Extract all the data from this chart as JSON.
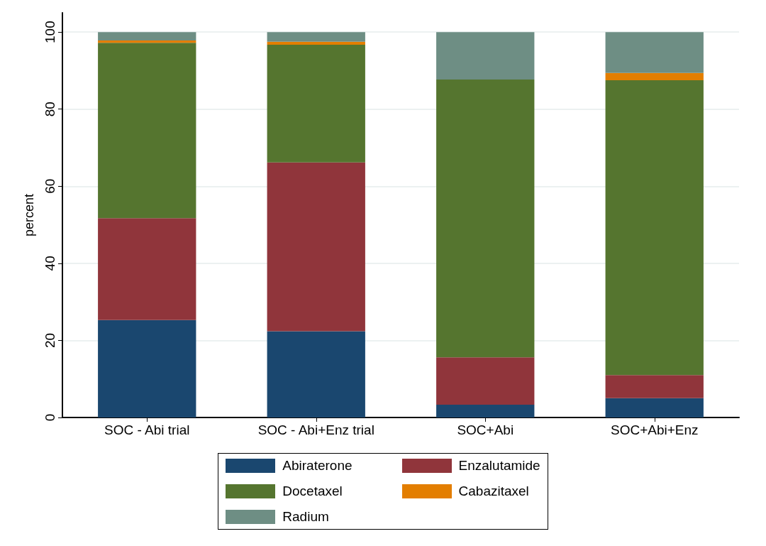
{
  "chart_data": {
    "type": "bar",
    "stacked": true,
    "ylabel": "percent",
    "categories": [
      "SOC - Abi trial",
      "SOC - Abi+Enz trial",
      "SOC+Abi",
      "SOC+Abi+Enz"
    ],
    "series": [
      {
        "name": "Abiraterone",
        "color": "#1a476f",
        "values": [
          25.3,
          22.4,
          3.3,
          5.0
        ]
      },
      {
        "name": "Enzalutamide",
        "color": "#90353b",
        "values": [
          26.4,
          43.8,
          12.3,
          6.0
        ]
      },
      {
        "name": "Docetaxel",
        "color": "#55752f",
        "values": [
          45.5,
          30.5,
          72.1,
          76.5
        ]
      },
      {
        "name": "Cabazitaxel",
        "color": "#e37e00",
        "values": [
          0.6,
          0.8,
          0,
          1.9
        ]
      },
      {
        "name": "Radium",
        "color": "#6e8e84",
        "values": [
          2.2,
          2.5,
          12.3,
          10.6
        ]
      }
    ],
    "ylim": [
      0,
      105
    ],
    "yticks": [
      0,
      20,
      40,
      60,
      80,
      100
    ],
    "grid": "y",
    "legend": "bottom"
  }
}
